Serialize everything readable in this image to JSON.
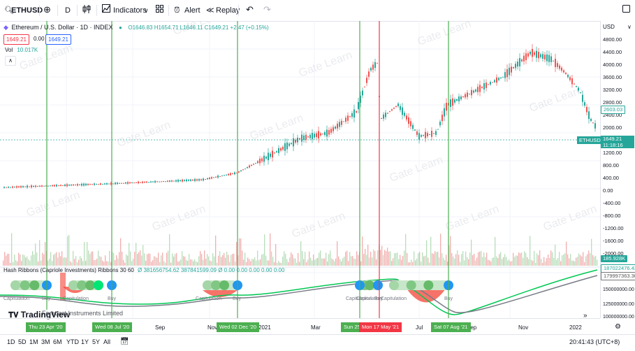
{
  "toolbar": {
    "symbol": "ETHUSD",
    "interval": "D",
    "indicators_label": "Indicators",
    "alert_label": "Alert",
    "replay_label": "Replay"
  },
  "legend": {
    "title": "Ethereum / U.S. Dollar · 1D · INDEX",
    "ohlc": "O1646.83 H1654.71 L1646.11 C1649.21 +2.47 (+0.15%)",
    "sell_price": "1649.21",
    "spread": "0.00",
    "buy_price": "1649.21",
    "vol_label": "Vol",
    "vol_value": "10.017K",
    "indicator_name": "Hash Ribbons (Capriole Investments) Ribbons 30 60",
    "indicator_values": "Ø 381656754.62  387841599.09  Ø  0.00  0.00  0.00  0.00  0.00"
  },
  "scale": {
    "currency": "USD",
    "ticks": [
      "4800.00",
      "4400.00",
      "4000.00",
      "3600.00",
      "3200.00",
      "2800.00",
      "2400.00",
      "2000.00",
      "1200.00",
      "800.00",
      "400.00",
      "0.00",
      "-400.00",
      "-800.00",
      "-1200.00",
      "-1600.00",
      "-2000.00"
    ],
    "last_badge": "ETHUSD",
    "last_price": "1649.21",
    "countdown": "11:18:16",
    "badge_2603": "2603.03",
    "badge_vol": "185.928K",
    "ind_ticks": [
      "150000000.00",
      "125000000.00",
      "100000000.00"
    ],
    "ind_badge_1": "187022476.43",
    "ind_badge_2": "179997363.30"
  },
  "watermark": "Gate Learn",
  "ribbon_labels": {
    "capitulation": "Capitulation",
    "buy": "Buy"
  },
  "tradingview_logo": "TradingView",
  "overlap_text": "Forecast Instruments Limited",
  "time_axis": {
    "labels": [
      "Sep",
      "Nov",
      "2021",
      "Mar",
      "Jul",
      "Sep",
      "Nov",
      "2022"
    ],
    "tags": [
      {
        "text": "Thu 23 Apr '20",
        "color": "#4caf50"
      },
      {
        "text": "Wed 08 Jul '20",
        "color": "#4caf50"
      },
      {
        "text": "Wed 02 Dec '20",
        "color": "#4caf50"
      },
      {
        "text": "Sun 25",
        "color": "#4caf50"
      },
      {
        "text": "Mon 17 May '21",
        "color": "#f23645"
      },
      {
        "text": "Sat 07 Aug '21",
        "color": "#4caf50"
      }
    ]
  },
  "bottom": {
    "ranges": [
      "1D",
      "5D",
      "1M",
      "3M",
      "6M",
      "YTD",
      "1Y",
      "5Y",
      "All"
    ],
    "clock": "20:41:43 (UTC+8)"
  }
}
